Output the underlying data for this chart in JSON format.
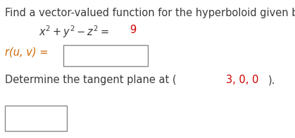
{
  "bg_color": "#ffffff",
  "title_text": "Find a vector-valued function for the hyperboloid given below.",
  "title_color": "#3b3b3b",
  "title_fontsize": 10.5,
  "eq_text": "x² + y² – z² = 9",
  "eq_color_main": "#3b3b3b",
  "eq_color_nine": "#cc0000",
  "ruv_label": "r(u, v) =",
  "ruv_label_color": "#cc6600",
  "ruv_label_fontsize": 10.5,
  "tangent_pre": "Determine the tangent plane at (",
  "tangent_coords": "3, 0, 0",
  "tangent_post": ").",
  "tangent_color_normal": "#3b3b3b",
  "tangent_color_coords": "#cc0000",
  "tangent_fontsize": 10.5
}
